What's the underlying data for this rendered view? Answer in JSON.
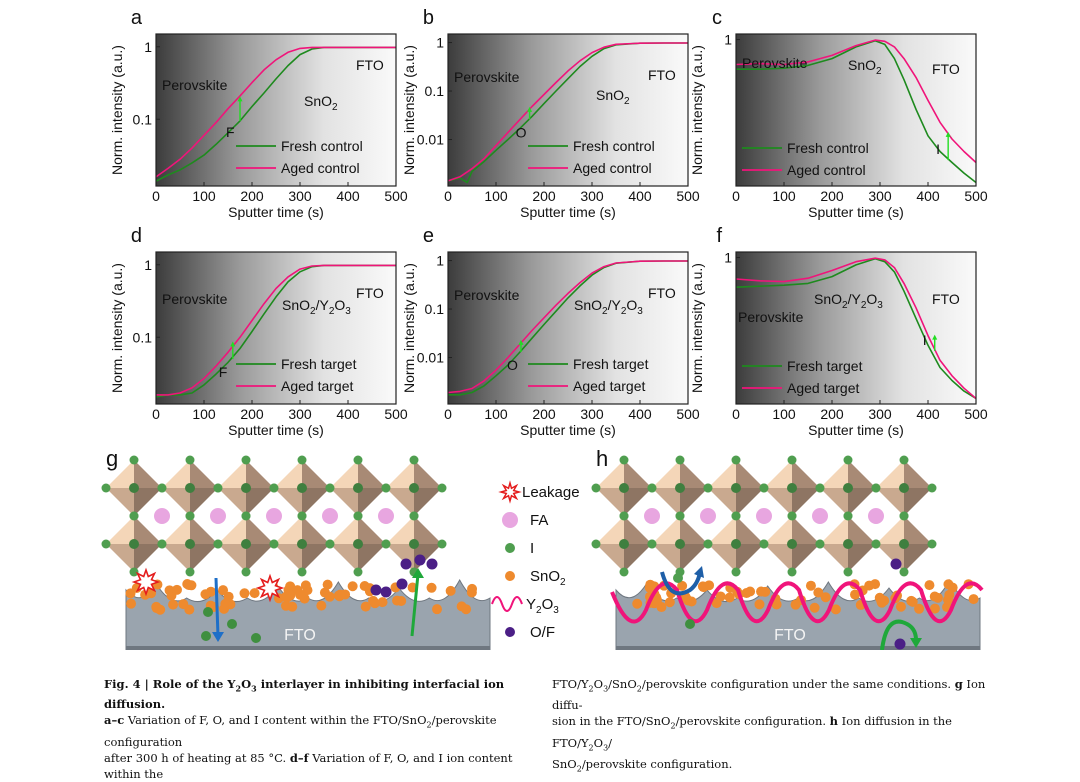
{
  "chart_data": [
    {
      "panel": "a",
      "type": "line",
      "yscale": "log",
      "xlabel": "Sputter time (s)",
      "ylabel": "Norm. intensity (a.u.)",
      "xlim": [
        0,
        500
      ],
      "ylim": [
        0.012,
        1.5
      ],
      "xticks": [
        "0",
        "100",
        "200",
        "300",
        "400",
        "500"
      ],
      "yticks": [
        {
          "v": 1,
          "label": "1"
        },
        {
          "v": 0.1,
          "label": "0.1"
        }
      ],
      "element": "F",
      "annotations": {
        "perovskite": "Perovskite",
        "layer": "SnO",
        "layer_sub": "2",
        "layer_rest": "",
        "fto": "FTO"
      },
      "legend": [
        "Fresh control",
        "Aged control"
      ],
      "series": [
        {
          "name": "Fresh control",
          "color": "#1e8a1e",
          "x": [
            0,
            25,
            50,
            75,
            100,
            125,
            150,
            175,
            200,
            225,
            250,
            275,
            300,
            325,
            350,
            400,
            450,
            500
          ],
          "y": [
            0.014,
            0.017,
            0.02,
            0.025,
            0.032,
            0.045,
            0.065,
            0.095,
            0.15,
            0.23,
            0.36,
            0.55,
            0.78,
            0.93,
            0.98,
            0.98,
            0.98,
            0.98
          ]
        },
        {
          "name": "Aged control",
          "color": "#f0147a",
          "x": [
            0,
            25,
            50,
            75,
            100,
            125,
            150,
            175,
            200,
            225,
            250,
            275,
            300,
            325,
            350,
            400,
            450,
            500
          ],
          "y": [
            0.016,
            0.021,
            0.028,
            0.04,
            0.06,
            0.09,
            0.14,
            0.21,
            0.32,
            0.48,
            0.66,
            0.84,
            0.95,
            0.98,
            0.98,
            0.98,
            0.98,
            0.98
          ]
        }
      ],
      "arrow": {
        "x": 175,
        "y0": 0.095,
        "y1": 0.2
      }
    },
    {
      "panel": "b",
      "type": "line",
      "yscale": "log",
      "xlabel": "Sputter time (s)",
      "ylabel": "Norm. intensity (a.u.)",
      "xlim": [
        0,
        500
      ],
      "ylim": [
        0.0011,
        1.5
      ],
      "xticks": [
        "0",
        "100",
        "200",
        "300",
        "400",
        "500"
      ],
      "yticks": [
        {
          "v": 1,
          "label": "1"
        },
        {
          "v": 0.1,
          "label": "0.1"
        },
        {
          "v": 0.01,
          "label": "0.01"
        }
      ],
      "element": "O",
      "annotations": {
        "perovskite": "Perovskite",
        "layer": "SnO",
        "layer_sub": "2",
        "layer_rest": "",
        "fto": "FTO"
      },
      "legend": [
        "Fresh control",
        "Aged control"
      ],
      "series": [
        {
          "name": "Fresh control",
          "color": "#1e8a1e",
          "x": [
            0,
            25,
            40,
            50,
            75,
            100,
            125,
            150,
            175,
            200,
            225,
            250,
            275,
            300,
            325,
            350,
            400,
            450,
            500
          ],
          "y": [
            0.0014,
            0.0016,
            0.0013,
            0.0022,
            0.0035,
            0.006,
            0.01,
            0.017,
            0.03,
            0.055,
            0.1,
            0.18,
            0.32,
            0.52,
            0.75,
            0.9,
            0.97,
            0.98,
            0.98
          ]
        },
        {
          "name": "Aged control",
          "color": "#f0147a",
          "x": [
            0,
            25,
            50,
            75,
            100,
            125,
            150,
            175,
            200,
            225,
            250,
            275,
            300,
            325,
            350,
            400,
            450,
            500
          ],
          "y": [
            0.0014,
            0.0017,
            0.0025,
            0.004,
            0.0075,
            0.014,
            0.026,
            0.048,
            0.085,
            0.15,
            0.26,
            0.42,
            0.62,
            0.8,
            0.92,
            0.97,
            0.98,
            0.98
          ]
        }
      ],
      "arrow": {
        "x": 170,
        "y0": 0.026,
        "y1": 0.045
      }
    },
    {
      "panel": "c",
      "type": "line",
      "yscale": "log",
      "xlabel": "Sputter time (s)",
      "ylabel": "Norm. intensity (a.u.)",
      "xlim": [
        0,
        500
      ],
      "ylim": [
        0.08,
        1.1
      ],
      "xticks": [
        "0",
        "100",
        "200",
        "300",
        "400",
        "500"
      ],
      "yticks": [
        {
          "v": 1,
          "label": "1"
        }
      ],
      "element": "I",
      "annotations": {
        "perovskite": "Perovskite",
        "layer": "SnO",
        "layer_sub": "2",
        "layer_rest": "",
        "fto": "FTO"
      },
      "legend": [
        "Fresh control",
        "Aged control"
      ],
      "series": [
        {
          "name": "Fresh control",
          "color": "#1e8a1e",
          "x": [
            0,
            50,
            100,
            150,
            200,
            250,
            290,
            310,
            330,
            350,
            375,
            400,
            425,
            450,
            475,
            500
          ],
          "y": [
            0.6,
            0.6,
            0.61,
            0.64,
            0.72,
            0.88,
            0.98,
            0.92,
            0.72,
            0.5,
            0.3,
            0.19,
            0.145,
            0.12,
            0.1,
            0.085
          ]
        },
        {
          "name": "Aged control",
          "color": "#f0147a",
          "x": [
            0,
            50,
            100,
            150,
            200,
            250,
            290,
            310,
            330,
            350,
            375,
            400,
            425,
            450,
            475,
            500
          ],
          "y": [
            0.65,
            0.66,
            0.65,
            0.68,
            0.76,
            0.9,
            0.99,
            0.97,
            0.88,
            0.72,
            0.52,
            0.35,
            0.24,
            0.18,
            0.145,
            0.12
          ]
        }
      ],
      "arrow": {
        "x": 442,
        "y0": 0.125,
        "y1": 0.2
      }
    },
    {
      "panel": "d",
      "type": "line",
      "yscale": "log",
      "xlabel": "Sputter time (s)",
      "ylabel": "Norm. intensity (a.u.)",
      "xlim": [
        0,
        500
      ],
      "ylim": [
        0.012,
        1.5
      ],
      "xticks": [
        "0",
        "100",
        "200",
        "300",
        "400",
        "500"
      ],
      "yticks": [
        {
          "v": 1,
          "label": "1"
        },
        {
          "v": 0.1,
          "label": "0.1"
        }
      ],
      "element": "F",
      "annotations": {
        "perovskite": "Perovskite",
        "layer": "SnO",
        "layer_sub": "2",
        "layer_rest": "/Y",
        "fto": "FTO"
      },
      "legend": [
        "Fresh target",
        "Aged target"
      ],
      "series": [
        {
          "name": "Fresh target",
          "color": "#1e8a1e",
          "x": [
            0,
            25,
            50,
            75,
            100,
            125,
            150,
            175,
            200,
            225,
            250,
            275,
            300,
            325,
            350,
            400,
            450,
            500
          ],
          "y": [
            0.015,
            0.016,
            0.016,
            0.017,
            0.022,
            0.031,
            0.045,
            0.07,
            0.12,
            0.21,
            0.36,
            0.58,
            0.8,
            0.94,
            0.98,
            0.98,
            0.98,
            0.98
          ]
        },
        {
          "name": "Aged target",
          "color": "#f0147a",
          "x": [
            0,
            25,
            50,
            75,
            100,
            125,
            150,
            175,
            200,
            225,
            250,
            275,
            300,
            325,
            350,
            400,
            450,
            500
          ],
          "y": [
            0.016,
            0.016,
            0.017,
            0.02,
            0.027,
            0.04,
            0.062,
            0.1,
            0.17,
            0.29,
            0.47,
            0.68,
            0.87,
            0.96,
            0.98,
            0.98,
            0.98,
            0.98
          ]
        }
      ],
      "arrow": {
        "x": 160,
        "y0": 0.05,
        "y1": 0.085
      }
    },
    {
      "panel": "e",
      "type": "line",
      "yscale": "log",
      "xlabel": "Sputter time (s)",
      "ylabel": "Norm. intensity (a.u.)",
      "xlim": [
        0,
        500
      ],
      "ylim": [
        0.0011,
        1.5
      ],
      "xticks": [
        "0",
        "100",
        "200",
        "300",
        "400",
        "500"
      ],
      "yticks": [
        {
          "v": 1,
          "label": "1"
        },
        {
          "v": 0.1,
          "label": "0.1"
        },
        {
          "v": 0.01,
          "label": "0.01"
        }
      ],
      "element": "O",
      "annotations": {
        "perovskite": "Perovskite",
        "layer": "SnO",
        "layer_sub": "2",
        "layer_rest": "/Y",
        "fto": "FTO"
      },
      "legend": [
        "Fresh target",
        "Aged target"
      ],
      "series": [
        {
          "name": "Fresh target",
          "color": "#1e8a1e",
          "x": [
            0,
            25,
            50,
            75,
            100,
            125,
            150,
            175,
            200,
            225,
            250,
            275,
            300,
            325,
            350,
            400,
            450,
            500
          ],
          "y": [
            0.0017,
            0.0017,
            0.0019,
            0.0026,
            0.0042,
            0.007,
            0.013,
            0.025,
            0.048,
            0.09,
            0.17,
            0.3,
            0.5,
            0.72,
            0.88,
            0.97,
            0.98,
            0.98
          ]
        },
        {
          "name": "Aged target",
          "color": "#f0147a",
          "x": [
            0,
            25,
            50,
            75,
            100,
            125,
            150,
            175,
            200,
            225,
            250,
            275,
            300,
            325,
            350,
            400,
            450,
            500
          ],
          "y": [
            0.0019,
            0.002,
            0.0023,
            0.0033,
            0.0055,
            0.01,
            0.019,
            0.036,
            0.066,
            0.12,
            0.21,
            0.35,
            0.55,
            0.75,
            0.89,
            0.97,
            0.98,
            0.98
          ]
        }
      ],
      "arrow": {
        "x": 152,
        "y0": 0.013,
        "y1": 0.022
      }
    },
    {
      "panel": "f",
      "type": "line",
      "yscale": "log",
      "xlabel": "Sputter time (s)",
      "ylabel": "Norm. intensity (a.u.)",
      "xlim": [
        0,
        500
      ],
      "ylim": [
        0.08,
        1.1
      ],
      "xticks": [
        "0",
        "100",
        "200",
        "300",
        "400",
        "500"
      ],
      "yticks": [
        {
          "v": 1,
          "label": "1"
        }
      ],
      "element": "I",
      "annotations": {
        "perovskite": "Perovskite",
        "layer": "SnO",
        "layer_sub": "2",
        "layer_rest": "/Y",
        "fto": "FTO"
      },
      "legend": [
        "Fresh target",
        "Aged target"
      ],
      "series": [
        {
          "name": "Fresh target",
          "color": "#1e8a1e",
          "x": [
            0,
            50,
            100,
            150,
            200,
            250,
            290,
            310,
            330,
            350,
            375,
            400,
            425,
            450,
            475,
            500
          ],
          "y": [
            0.6,
            0.61,
            0.62,
            0.64,
            0.72,
            0.88,
            0.98,
            0.93,
            0.78,
            0.56,
            0.35,
            0.22,
            0.15,
            0.12,
            0.1,
            0.088
          ]
        },
        {
          "name": "Aged target",
          "color": "#f0147a",
          "x": [
            0,
            50,
            100,
            150,
            200,
            250,
            290,
            310,
            330,
            350,
            375,
            400,
            425,
            450,
            475,
            500
          ],
          "y": [
            0.69,
            0.67,
            0.66,
            0.7,
            0.8,
            0.93,
            0.99,
            0.96,
            0.84,
            0.64,
            0.42,
            0.26,
            0.17,
            0.13,
            0.105,
            0.088
          ]
        }
      ],
      "arrow": {
        "x": 414,
        "y0": 0.2,
        "y1": 0.26
      }
    }
  ],
  "schematics": {
    "g": {
      "label": "g",
      "substrate": "FTO"
    },
    "h": {
      "label": "h",
      "substrate": "FTO"
    },
    "legend": [
      {
        "key": "leakage",
        "label": "Leakage"
      },
      {
        "key": "fa",
        "label": "FA"
      },
      {
        "key": "i",
        "label": "I"
      },
      {
        "key": "sno2",
        "label": "SnO",
        "sub": "2"
      },
      {
        "key": "y2o3",
        "label": "Y",
        "sub": "2"
      },
      {
        "key": "of",
        "label": "O/F"
      }
    ],
    "colors": {
      "leakage": "#e41c1c",
      "fa": "#e8a6e0",
      "i": "#4f9e4f",
      "sno2": "#ee8a2e",
      "y2o3": "#f0147a",
      "of": "#4b1f86",
      "fto": "#9aa4ae",
      "octa_light": "#f4d6b8",
      "octa_dark": "#a88a75"
    }
  },
  "caption": {
    "fig_label": "Fig. 4 | Role of the Y",
    "fig_title_rest": " interlayer in inhibiting interfacial ion diffusion.",
    "line1_bold": "a–c",
    "line1": " Variation of F, O, and I content within the FTO/SnO",
    "line1_end": "/perovskite configuration",
    "line2_a": "after 300 h of heating at 85 °C. ",
    "line2_bold": "d–f",
    "line2_b": " Variation of F, O, and I ion content within the",
    "col2_line1": "FTO/Y",
    "col2_line1_b": "O",
    "col2_line1_c": "/SnO",
    "col2_line1_d": "/perovskite configuration under the same conditions. ",
    "col2_g": "g",
    "col2_line1_e": " Ion diffu-",
    "col2_line2_a": "sion in the FTO/SnO",
    "col2_line2_b": "/perovskite configuration. ",
    "col2_h": "h",
    "col2_line2_c": " Ion diffusion in the FTO/Y",
    "col2_line2_d": "O",
    "col2_line2_e": "/",
    "col2_line3_a": "SnO",
    "col2_line3_b": "/perovskite configuration.",
    "sub2": "2",
    "sub3": "3"
  }
}
